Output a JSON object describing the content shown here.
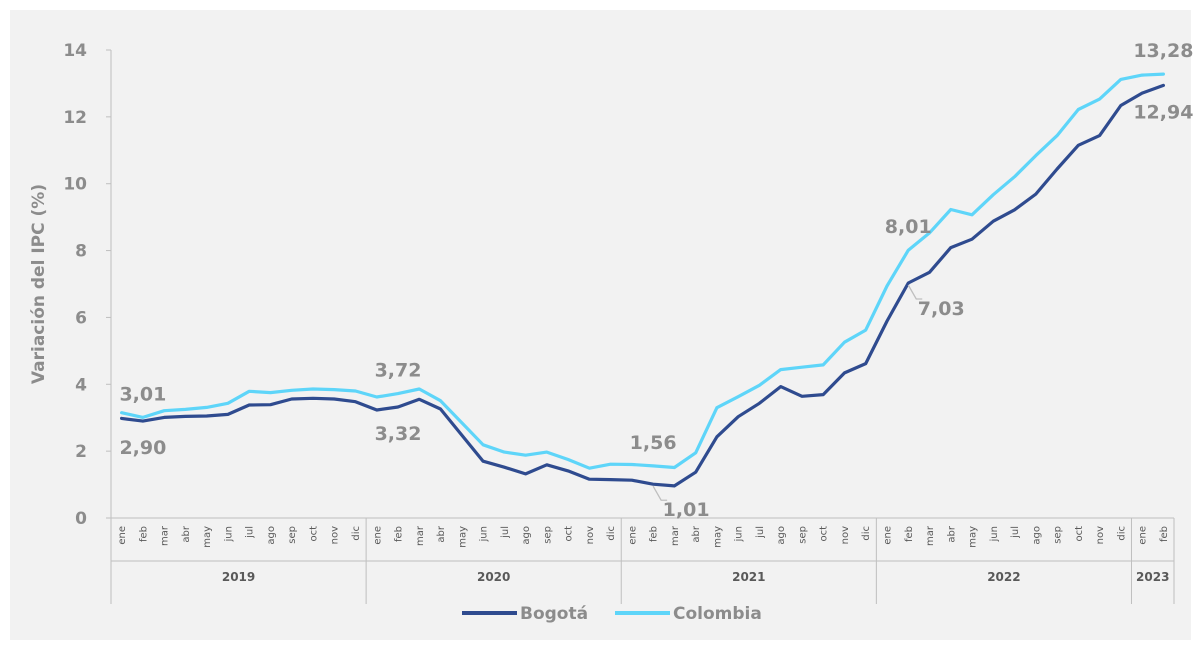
{
  "chart_data": {
    "type": "line",
    "ylabel": "Variación del IPC (%)",
    "ylim": [
      0,
      14
    ],
    "yticks": [
      "0",
      "2",
      "4",
      "6",
      "8",
      "10",
      "12",
      "14"
    ],
    "x": [
      "ene",
      "feb",
      "mar",
      "abr",
      "may",
      "jun",
      "jul",
      "ago",
      "sep",
      "oct",
      "nov",
      "dic",
      "ene",
      "feb",
      "mar",
      "abr",
      "may",
      "jun",
      "jul",
      "ago",
      "sep",
      "oct",
      "nov",
      "dic",
      "ene",
      "feb",
      "mar",
      "abr",
      "may",
      "jun",
      "jul",
      "ago",
      "sep",
      "oct",
      "nov",
      "dic",
      "ene",
      "feb",
      "mar",
      "abr",
      "may",
      "jun",
      "jul",
      "ago",
      "sep",
      "oct",
      "nov",
      "dic",
      "ene",
      "feb"
    ],
    "years": [
      {
        "label": "2019",
        "start": 0,
        "count": 12
      },
      {
        "label": "2020",
        "start": 12,
        "count": 12
      },
      {
        "label": "2021",
        "start": 24,
        "count": 12
      },
      {
        "label": "2022",
        "start": 36,
        "count": 12
      },
      {
        "label": "2023",
        "start": 48,
        "count": 2
      }
    ],
    "series": [
      {
        "name": "Bogotá",
        "color": "#2f4b8f",
        "values": [
          2.98,
          2.9,
          3.01,
          3.04,
          3.05,
          3.1,
          3.38,
          3.39,
          3.56,
          3.58,
          3.56,
          3.48,
          3.23,
          3.32,
          3.55,
          3.26,
          2.48,
          1.7,
          1.52,
          1.32,
          1.59,
          1.41,
          1.16,
          1.15,
          1.13,
          1.01,
          0.96,
          1.37,
          2.43,
          3.03,
          3.43,
          3.93,
          3.64,
          3.69,
          4.34,
          4.62,
          5.89,
          7.03,
          7.35,
          8.09,
          8.34,
          8.88,
          9.22,
          9.69,
          10.44,
          11.15,
          11.44,
          12.34,
          12.71,
          12.94
        ]
      },
      {
        "name": "Colombia",
        "color": "#5ed5f9",
        "values": [
          3.15,
          3.01,
          3.21,
          3.25,
          3.31,
          3.43,
          3.79,
          3.75,
          3.82,
          3.86,
          3.84,
          3.8,
          3.62,
          3.72,
          3.86,
          3.51,
          2.85,
          2.19,
          1.97,
          1.88,
          1.97,
          1.75,
          1.49,
          1.61,
          1.6,
          1.56,
          1.51,
          1.95,
          3.3,
          3.63,
          3.97,
          4.44,
          4.51,
          4.58,
          5.26,
          5.62,
          6.94,
          8.01,
          8.53,
          9.23,
          9.07,
          9.67,
          10.21,
          10.84,
          11.44,
          12.22,
          12.53,
          13.12,
          13.25,
          13.28
        ]
      }
    ],
    "annotations": [
      {
        "text": "3,01",
        "index": 1,
        "series": 1,
        "pos": "above"
      },
      {
        "text": "2,90",
        "index": 1,
        "series": 0,
        "pos": "below"
      },
      {
        "text": "3,72",
        "index": 13,
        "series": 1,
        "pos": "above"
      },
      {
        "text": "3,32",
        "index": 13,
        "series": 0,
        "pos": "below"
      },
      {
        "text": "1,56",
        "index": 25,
        "series": 1,
        "pos": "above"
      },
      {
        "text": "1,01",
        "index": 25,
        "series": 0,
        "pos": "below-right"
      },
      {
        "text": "8,01",
        "index": 37,
        "series": 1,
        "pos": "above"
      },
      {
        "text": "7,03",
        "index": 37,
        "series": 0,
        "pos": "below-right"
      },
      {
        "text": "13,28",
        "index": 49,
        "series": 1,
        "pos": "above"
      },
      {
        "text": "12,94",
        "index": 49,
        "series": 0,
        "pos": "below"
      }
    ],
    "legend": {
      "position": "bottom-center"
    },
    "grid": false
  }
}
